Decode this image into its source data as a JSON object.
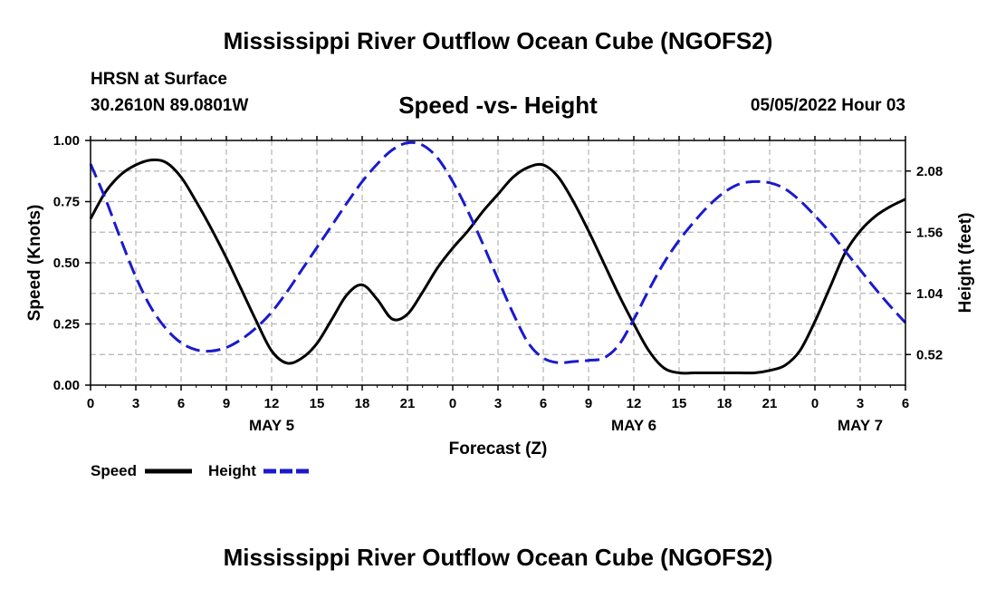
{
  "header": {
    "title": "Mississippi River Outflow Ocean Cube (NGOFS2)",
    "station": "HRSN at Surface",
    "coords": "30.2610N  89.0801W",
    "subtitle": "Speed -vs- Height",
    "datetime": "05/05/2022 Hour 03"
  },
  "footer": {
    "title": "Mississippi River Outflow Ocean Cube (NGOFS2)"
  },
  "colors": {
    "speed": "#000000",
    "height": "#1a1acc",
    "grid": "#b4b4b4"
  },
  "chart_data": {
    "type": "line",
    "title": "Speed -vs- Height",
    "xlabel": "Forecast (Z)",
    "ylabel": "Speed (Knots)",
    "y2label": "Height (feet)",
    "xlim": [
      0,
      54
    ],
    "ylim": [
      0,
      1
    ],
    "y2lim": [
      0.26,
      2.34
    ],
    "x_ticks": [
      0,
      3,
      6,
      9,
      12,
      15,
      18,
      21,
      24,
      27,
      30,
      33,
      36,
      39,
      42,
      45,
      48,
      51,
      54
    ],
    "x_tick_labels": [
      "0",
      "3",
      "6",
      "9",
      "12",
      "15",
      "18",
      "21",
      "0",
      "3",
      "6",
      "9",
      "12",
      "15",
      "18",
      "21",
      "0",
      "3",
      "6"
    ],
    "y_ticks": [
      0,
      0.25,
      0.5,
      0.75,
      1.0
    ],
    "y_tick_labels": [
      "0.00",
      "0.25",
      "0.50",
      "0.75",
      "1.00"
    ],
    "y2_ticks": [
      0.52,
      1.04,
      1.56,
      2.08
    ],
    "y2_tick_labels": [
      "0.52",
      "1.04",
      "1.56",
      "2.08"
    ],
    "date_labels": [
      {
        "x": 12,
        "label": "MAY 5"
      },
      {
        "x": 36,
        "label": "MAY 6"
      },
      {
        "x": 51,
        "label": "MAY 7"
      }
    ],
    "legend": [
      {
        "name": "Speed",
        "style": "solid"
      },
      {
        "name": "Height",
        "style": "dashed"
      }
    ],
    "series": [
      {
        "name": "Speed",
        "axis": "left",
        "style": "solid",
        "x": [
          0,
          1,
          2,
          3,
          4,
          5,
          6,
          7,
          8,
          9,
          10,
          11,
          12,
          13,
          14,
          15,
          16,
          17,
          18,
          19,
          20,
          21,
          22,
          23,
          24,
          25,
          26,
          27,
          28,
          29,
          30,
          31,
          32,
          33,
          34,
          35,
          36,
          37,
          38,
          39,
          40,
          41,
          42,
          43,
          44,
          45,
          46,
          47,
          48,
          49,
          50,
          51,
          52,
          53,
          54
        ],
        "values": [
          0.68,
          0.79,
          0.86,
          0.9,
          0.92,
          0.91,
          0.85,
          0.75,
          0.64,
          0.52,
          0.39,
          0.26,
          0.14,
          0.09,
          0.11,
          0.17,
          0.27,
          0.37,
          0.41,
          0.35,
          0.27,
          0.29,
          0.38,
          0.48,
          0.56,
          0.63,
          0.71,
          0.78,
          0.85,
          0.89,
          0.9,
          0.85,
          0.75,
          0.63,
          0.5,
          0.37,
          0.25,
          0.14,
          0.07,
          0.05,
          0.05,
          0.05,
          0.05,
          0.05,
          0.05,
          0.06,
          0.08,
          0.14,
          0.26,
          0.4,
          0.54,
          0.63,
          0.69,
          0.73,
          0.76
        ]
      },
      {
        "name": "Height",
        "axis": "right",
        "style": "dashed",
        "x": [
          0,
          1,
          2,
          3,
          4,
          5,
          6,
          7,
          8,
          9,
          10,
          11,
          12,
          13,
          14,
          15,
          16,
          17,
          18,
          19,
          20,
          21,
          22,
          23,
          24,
          25,
          26,
          27,
          28,
          29,
          30,
          31,
          32,
          33,
          34,
          35,
          36,
          37,
          38,
          39,
          40,
          41,
          42,
          43,
          44,
          45,
          46,
          47,
          48,
          49,
          50,
          51,
          52,
          53,
          54
        ],
        "values": [
          2.14,
          1.84,
          1.5,
          1.18,
          0.92,
          0.74,
          0.62,
          0.56,
          0.55,
          0.58,
          0.65,
          0.75,
          0.88,
          1.05,
          1.24,
          1.43,
          1.62,
          1.81,
          1.99,
          2.14,
          2.26,
          2.32,
          2.3,
          2.19,
          1.99,
          1.74,
          1.46,
          1.16,
          0.87,
          0.62,
          0.49,
          0.45,
          0.46,
          0.47,
          0.49,
          0.6,
          0.82,
          1.07,
          1.3,
          1.49,
          1.65,
          1.79,
          1.9,
          1.97,
          1.99,
          1.98,
          1.93,
          1.83,
          1.7,
          1.56,
          1.4,
          1.24,
          1.08,
          0.93,
          0.79
        ]
      }
    ]
  }
}
